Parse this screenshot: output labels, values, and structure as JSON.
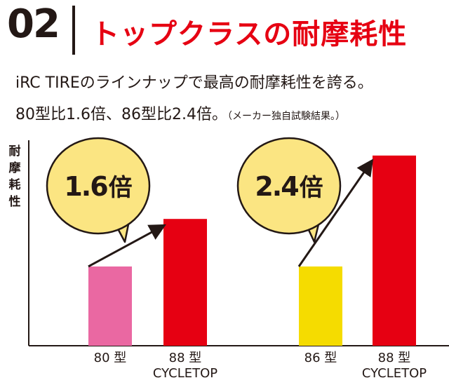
{
  "header": {
    "number": "02",
    "title": "トップクラスの耐摩耗性"
  },
  "description": {
    "line1": "iRC TIREのラインナップで最高の耐摩耗性を誇る。",
    "line2": "80型比1.6倍、86型比2.4倍。",
    "note": "（メーカー独自試験結果。）"
  },
  "chart_data": {
    "type": "bar",
    "ylabel": "耐摩耗性",
    "categories": [
      "80 型",
      "88 型 CYCLETOP",
      "86 型",
      "88 型 CYCLETOP"
    ],
    "values": [
      1.0,
      1.6,
      1.0,
      2.4
    ],
    "bar_colors": [
      "#ea68a2",
      "#e60012",
      "#f5dc00",
      "#e60012"
    ],
    "callouts": [
      {
        "label": "1.6 倍",
        "text": "1.6",
        "unit": "倍"
      },
      {
        "label": "2.4 倍",
        "text": "2.4",
        "unit": "倍"
      }
    ],
    "callout_color": "#fbe582",
    "axis_color": "#231815"
  }
}
